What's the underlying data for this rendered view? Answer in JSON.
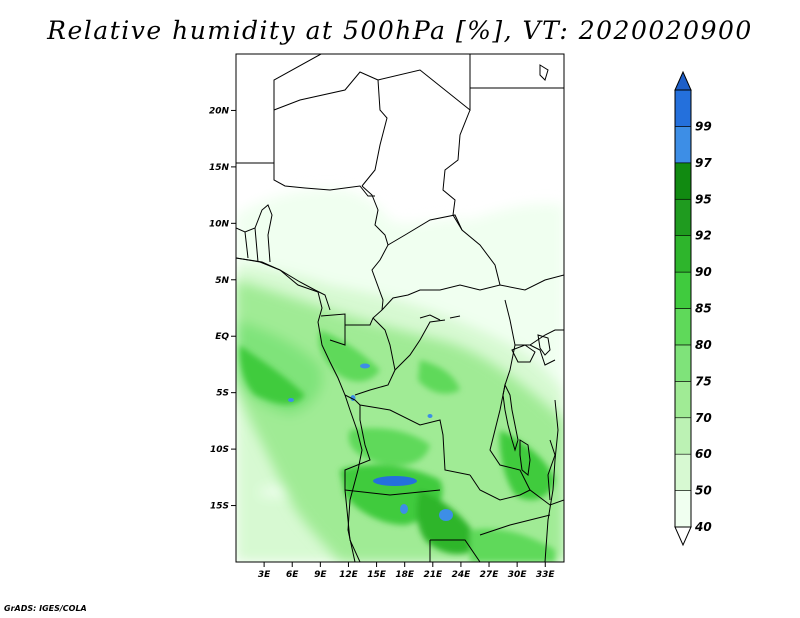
{
  "title": "Relative humidity at 500hPa [%], VT: 2020020900",
  "credit": "GrADS: IGES/COLA",
  "map": {
    "lon_range": [
      0,
      35
    ],
    "lat_range": [
      -20,
      25
    ],
    "lat_ticks": [
      {
        "value": 20,
        "label": "20N"
      },
      {
        "value": 15,
        "label": "15N"
      },
      {
        "value": 10,
        "label": "10N"
      },
      {
        "value": 5,
        "label": "5N"
      },
      {
        "value": 0,
        "label": "EQ"
      },
      {
        "value": -5,
        "label": "5S"
      },
      {
        "value": -10,
        "label": "10S"
      },
      {
        "value": -15,
        "label": "15S"
      }
    ],
    "lon_ticks": [
      {
        "value": 3,
        "label": "3E"
      },
      {
        "value": 6,
        "label": "6E"
      },
      {
        "value": 9,
        "label": "9E"
      },
      {
        "value": 12,
        "label": "12E"
      },
      {
        "value": 15,
        "label": "15E"
      },
      {
        "value": 18,
        "label": "18E"
      },
      {
        "value": 21,
        "label": "21E"
      },
      {
        "value": 24,
        "label": "24E"
      },
      {
        "value": 27,
        "label": "27E"
      },
      {
        "value": 30,
        "label": "30E"
      },
      {
        "value": 33,
        "label": "33E"
      }
    ]
  },
  "colorbar": {
    "levels": [
      {
        "label": "40",
        "color": "#f0fff0"
      },
      {
        "label": "50",
        "color": "#d7f9d2"
      },
      {
        "label": "60",
        "color": "#bcf2b4"
      },
      {
        "label": "70",
        "color": "#a0eb95"
      },
      {
        "label": "75",
        "color": "#7fe37a"
      },
      {
        "label": "80",
        "color": "#5fd95a"
      },
      {
        "label": "85",
        "color": "#40cb3e"
      },
      {
        "label": "90",
        "color": "#2eb52c"
      },
      {
        "label": "92",
        "color": "#1f9b1f"
      },
      {
        "label": "95",
        "color": "#118a11"
      },
      {
        "label": "97",
        "color": "#3d8ee6"
      },
      {
        "label": "99",
        "color": "#2470dc"
      }
    ],
    "top_color": "#1e5fc8",
    "bottom_color": "#ffffff"
  }
}
